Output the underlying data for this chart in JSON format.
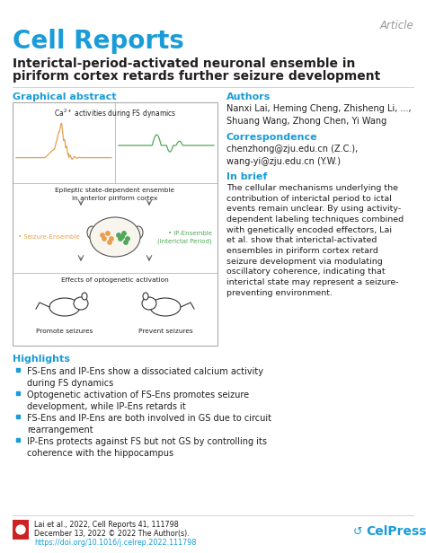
{
  "title_journal": "Cell Reports",
  "title_article_type": "Article",
  "title_main_line1": "Interictal-period-activated neuronal ensemble in",
  "title_main_line2": "piriform cortex retards further seizure development",
  "section_graphical": "Graphical abstract",
  "section_authors": "Authors",
  "authors_text": "Nanxi Lai, Heming Cheng, Zhisheng Li, ...,\nShuang Wang, Zhong Chen, Yi Wang",
  "section_correspondence": "Correspondence",
  "correspondence_text": "chenzhong@zju.edu.cn (Z.C.),\nwang-yi@zju.edu.cn (Y.W.)",
  "section_brief": "In brief",
  "brief_text": "The cellular mechanisms underlying the\ncontribution of interictal period to ictal\nevents remain unclear. By using activity-\ndependent labeling techniques combined\nwith genetically encoded effectors, Lai\net al. show that interictal-activated\nensembles in piriform cortex retard\nseizure development via modulating\noscillatory coherence, indicating that\ninterictal state may represent a seizure-\npreventing environment.",
  "section_highlights": "Highlights",
  "highlights": [
    "FS-Ens and IP-Ens show a dissociated calcium activity\nduring FS dynamics",
    "Optogenetic activation of FS-Ens promotes seizure\ndevelopment, while IP-Ens retards it",
    "FS-Ens and IP-Ens are both involved in GS due to circuit\nrearrangement",
    "IP-Ens protects against FS but not GS by controlling its\ncoherence with the hippocampus"
  ],
  "footer_text1": "Lai et al., 2022, Cell Reports 41, 111798",
  "footer_text2": "December 13, 2022 © 2022 The Author(s).",
  "footer_link": "https://doi.org/10.1016/j.celrep.2022.111798",
  "color_blue": "#1a9cd8",
  "color_dark": "#231f20",
  "color_gray": "#9a9a9a",
  "color_orange": "#e8a050",
  "color_green": "#50a858",
  "background": "#ffffff",
  "box_edge": "#aaaaaa",
  "divider": "#cccccc"
}
